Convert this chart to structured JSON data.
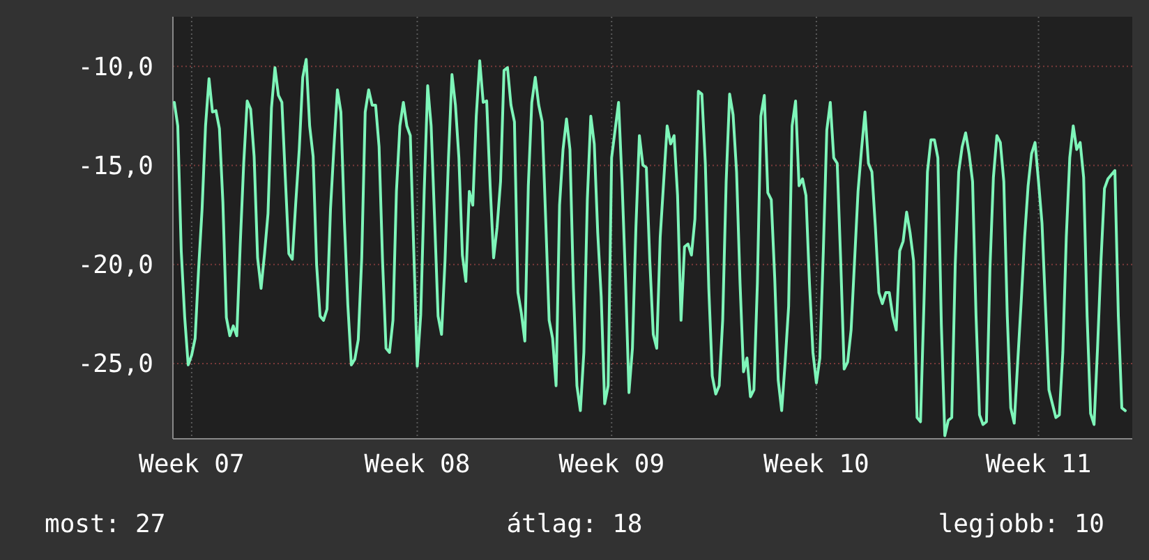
{
  "chart_data": {
    "type": "line",
    "categories": [
      null,
      null,
      null,
      null,
      null,
      "Week 07",
      null,
      null,
      null,
      null,
      null,
      null,
      null,
      null,
      null,
      null,
      null,
      null,
      null,
      null,
      null,
      null,
      null,
      null,
      null,
      null,
      null,
      null,
      null,
      null,
      null,
      null,
      null,
      null,
      null,
      null,
      null,
      null,
      null,
      null,
      null,
      null,
      null,
      null,
      null,
      null,
      null,
      null,
      null,
      null,
      null,
      null,
      null,
      null,
      null,
      null,
      null,
      null,
      null,
      null,
      null,
      null,
      null,
      null,
      null,
      null,
      null,
      null,
      null,
      null,
      "Week 08",
      null,
      null,
      null,
      null,
      null,
      null,
      null,
      null,
      null,
      null,
      null,
      null,
      null,
      null,
      null,
      null,
      null,
      null,
      null,
      null,
      null,
      null,
      null,
      null,
      null,
      null,
      null,
      null,
      null,
      null,
      null,
      null,
      null,
      null,
      null,
      null,
      null,
      null,
      null,
      null,
      null,
      null,
      null,
      null,
      null,
      null,
      null,
      null,
      null,
      null,
      null,
      null,
      null,
      null,
      null,
      "Week 09",
      null,
      null,
      null,
      null,
      null,
      null,
      null,
      null,
      null,
      null,
      null,
      null,
      null,
      null,
      null,
      null,
      null,
      null,
      null,
      null,
      null,
      null,
      null,
      null,
      null,
      null,
      null,
      null,
      null,
      null,
      null,
      null,
      null,
      null,
      null,
      null,
      null,
      null,
      null,
      null,
      null,
      null,
      null,
      null,
      null,
      null,
      null,
      null,
      null,
      null,
      null,
      null,
      null,
      null,
      null,
      null,
      null,
      null,
      "Week 10",
      null,
      null,
      null,
      null,
      null,
      null,
      null,
      null,
      null,
      null,
      null,
      null,
      null,
      null,
      null,
      null,
      null,
      null,
      null,
      null,
      null,
      null,
      null,
      null,
      null,
      null,
      null,
      null,
      null,
      null,
      null,
      null,
      null,
      null,
      null,
      null,
      null,
      null,
      null,
      null,
      null,
      null,
      null,
      null,
      null,
      null,
      null,
      null,
      null,
      null,
      null,
      null,
      null,
      null,
      null,
      null,
      null,
      null,
      null,
      null,
      null,
      null,
      null,
      "Week 11",
      null,
      null,
      null,
      null,
      null,
      null,
      null,
      null,
      null,
      null,
      null,
      null,
      null,
      null,
      null,
      null,
      null,
      null,
      null,
      null,
      null,
      null,
      null,
      null,
      null
    ],
    "series": [
      {
        "color": "#7ef5b9",
        "values": [
          -11.82,
          -13.01,
          -19.32,
          -22.68,
          -25.07,
          -24.58,
          -23.73,
          -20.23,
          -17.22,
          -13.01,
          -10.63,
          -12.31,
          -12.24,
          -13.15,
          -16.87,
          -22.68,
          -23.6,
          -23.1,
          -23.6,
          -18.97,
          -14.9,
          -11.75,
          -12.17,
          -14.55,
          -19.67,
          -21.21,
          -19.46,
          -17.43,
          -12.1,
          -10.07,
          -11.47,
          -11.82,
          -15.68,
          -19.46,
          -19.74,
          -16.87,
          -14.2,
          -10.56,
          -9.65,
          -13.01,
          -14.55,
          -20.02,
          -22.61,
          -22.82,
          -22.26,
          -17.22,
          -14.06,
          -11.19,
          -12.31,
          -17.78,
          -22.05,
          -25.07,
          -24.79,
          -23.8,
          -19.67,
          -12.31,
          -11.19,
          -11.96,
          -11.96,
          -14.06,
          -19.81,
          -24.23,
          -24.44,
          -22.82,
          -16.31,
          -13.01,
          -11.82,
          -13.01,
          -13.5,
          -19.32,
          -25.14,
          -22.54,
          -16.31,
          -10.98,
          -13.01,
          -17.71,
          -22.61,
          -23.53,
          -19.81,
          -14.62,
          -10.42,
          -11.96,
          -14.62,
          -19.53,
          -20.86,
          -16.31,
          -17.01,
          -12.52,
          -9.72,
          -11.82,
          -11.75,
          -16.03,
          -19.67,
          -18.13,
          -15.82,
          -10.21,
          -10.07,
          -11.96,
          -12.8,
          -21.42,
          -22.47,
          -23.87,
          -16.03,
          -11.82,
          -10.56,
          -11.96,
          -12.8,
          -17.71,
          -22.82,
          -23.73,
          -26.12,
          -17.01,
          -14.2,
          -12.66,
          -14.2,
          -21.21,
          -26.12,
          -27.38,
          -24.44,
          -16.73,
          -12.52,
          -13.92,
          -18.41,
          -21.63,
          -27.03,
          -26.12,
          -14.62,
          -13.22,
          -11.82,
          -15.82,
          -20.72,
          -26.47,
          -24.23,
          -18.13,
          -13.5,
          -14.98,
          -15.11,
          -19.81,
          -23.53,
          -24.23,
          -18.62,
          -15.82,
          -13.01,
          -13.92,
          -13.5,
          -16.52,
          -22.82,
          -19.11,
          -18.97,
          -19.53,
          -17.71,
          -11.26,
          -11.4,
          -14.9,
          -21.21,
          -25.63,
          -26.54,
          -26.12,
          -22.82,
          -15.82,
          -11.4,
          -12.45,
          -15.33,
          -20.93,
          -25.42,
          -24.72,
          -26.68,
          -26.33,
          -20.93,
          -12.52,
          -11.47,
          -16.38,
          -16.73,
          -20.72,
          -25.84,
          -27.38,
          -24.93,
          -22.12,
          -13.01,
          -11.75,
          -16.03,
          -15.68,
          -16.52,
          -20.93,
          -24.44,
          -25.98,
          -24.72,
          -19.32,
          -13.22,
          -11.82,
          -14.62,
          -14.9,
          -19.81,
          -25.28,
          -24.93,
          -23.31,
          -19.81,
          -16.31,
          -14.2,
          -12.31,
          -14.9,
          -15.33,
          -18.13,
          -21.42,
          -21.98,
          -21.42,
          -21.42,
          -22.61,
          -23.31,
          -19.32,
          -18.83,
          -17.36,
          -18.41,
          -19.81,
          -27.73,
          -27.94,
          -21.91,
          -15.33,
          -13.71,
          -13.71,
          -14.62,
          -23.03,
          -28.64,
          -27.87,
          -27.73,
          -20.02,
          -15.33,
          -14.06,
          -13.36,
          -14.41,
          -15.82,
          -22.61,
          -27.59,
          -28.08,
          -27.94,
          -20.23,
          -15.61,
          -13.5,
          -13.85,
          -15.82,
          -22.61,
          -27.24,
          -28.01,
          -24.93,
          -21.91,
          -18.62,
          -16.03,
          -14.41,
          -13.85,
          -15.82,
          -17.92,
          -22.12,
          -26.33,
          -27.03,
          -27.73,
          -27.59,
          -24.44,
          -18.62,
          -14.62,
          -13.01,
          -14.2,
          -13.85,
          -15.61,
          -22.61,
          -27.52,
          -28.08,
          -24.23,
          -19.81,
          -16.17,
          -15.68,
          -15.47,
          -15.26,
          -22.61,
          -27.24,
          -27.38
        ]
      }
    ],
    "ylim": [
      -28.8,
      -7.5
    ],
    "yticks": [
      {
        "value": -25,
        "label": "-25,0"
      },
      {
        "value": -20,
        "label": "-20,0"
      },
      {
        "value": -15,
        "label": "-15,0"
      },
      {
        "value": -10,
        "label": "-10,0"
      }
    ],
    "grid": true,
    "marker": "none",
    "line_style": "solid",
    "annotations": [
      "most: 27",
      "átlag: 18",
      "legjobb: 10"
    ]
  }
}
